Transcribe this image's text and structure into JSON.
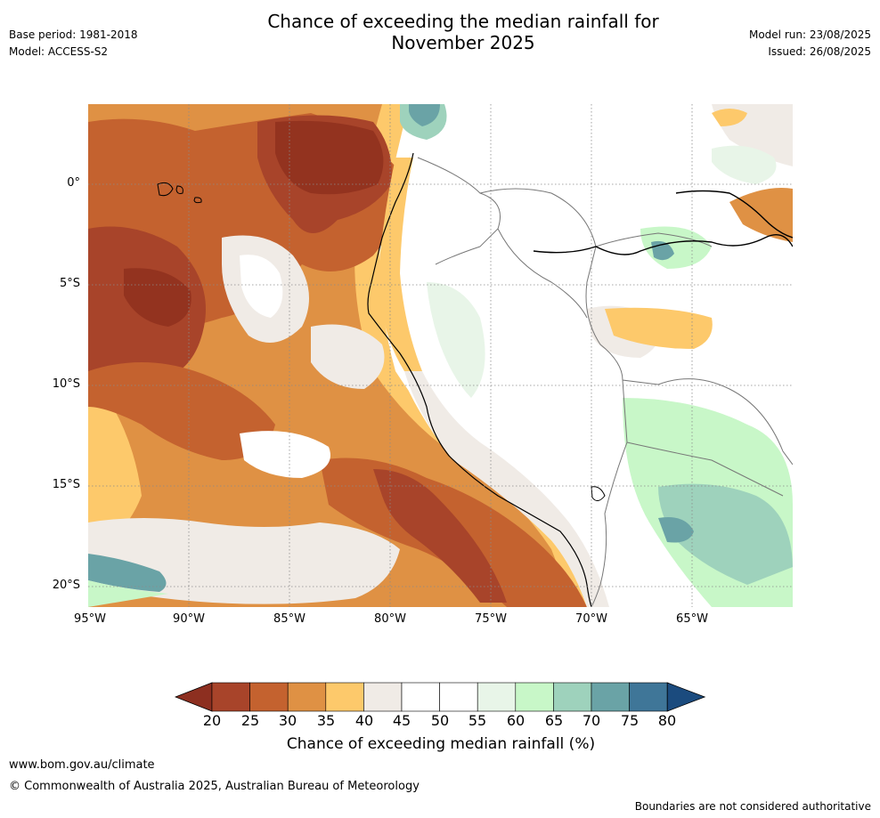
{
  "header": {
    "base_period": "Base period: 1981-2018",
    "model": "Model: ACCESS-S2",
    "title_line1": "Chance of exceeding the median rainfall for",
    "title_line2": "November 2025",
    "model_run": "Model run: 23/08/2025",
    "issued": "Issued: 26/08/2025"
  },
  "map": {
    "lat_labels": [
      "0°",
      "5°S",
      "10°S",
      "15°S",
      "20°S"
    ],
    "lon_labels": [
      "95°W",
      "90°W",
      "85°W",
      "80°W",
      "75°W",
      "70°W",
      "65°W"
    ]
  },
  "colorbar": {
    "ticks": [
      "20",
      "25",
      "30",
      "35",
      "40",
      "45",
      "50",
      "55",
      "60",
      "65",
      "70",
      "75",
      "80"
    ],
    "colors": [
      "#a8442a",
      "#c4622f",
      "#df9144",
      "#fdc96b",
      "#f0ebe6",
      "#ffffff",
      "#ffffff",
      "#e8f5e8",
      "#c8f7c8",
      "#9ed2bc",
      "#6aa3a6",
      "#3f7698"
    ],
    "low_color": "#8d2f20",
    "high_color": "#1b4b7e",
    "title": "Chance of exceeding median rainfall (%)"
  },
  "footer": {
    "url": "www.bom.gov.au/climate",
    "copyright": "© Commonwealth of Australia 2025, Australian Bureau of Meteorology",
    "disclaimer": "Boundaries are not considered authoritative"
  }
}
